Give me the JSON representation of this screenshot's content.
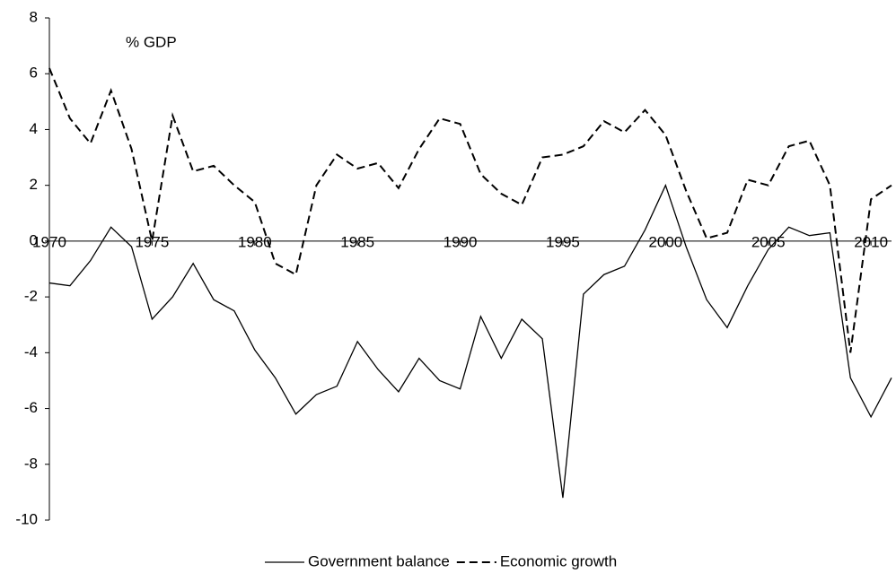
{
  "chart_data": {
    "type": "line",
    "annotation": "% GDP",
    "x": [
      1970,
      1971,
      1972,
      1973,
      1974,
      1975,
      1976,
      1977,
      1978,
      1979,
      1980,
      1981,
      1982,
      1983,
      1984,
      1985,
      1986,
      1987,
      1988,
      1989,
      1990,
      1991,
      1992,
      1993,
      1994,
      1995,
      1996,
      1997,
      1998,
      1999,
      2000,
      2001,
      2002,
      2003,
      2004,
      2005,
      2006,
      2007,
      2008,
      2009,
      2010,
      2011
    ],
    "series": [
      {
        "name": "Government balance",
        "color": "#000000",
        "style": "solid",
        "values": [
          -1.5,
          -1.6,
          -0.7,
          0.5,
          -0.2,
          -2.8,
          -2.0,
          -0.8,
          -2.1,
          -2.5,
          -3.9,
          -4.9,
          -6.2,
          -5.5,
          -5.2,
          -3.6,
          -4.6,
          -5.4,
          -4.2,
          -5.0,
          -5.3,
          -2.7,
          -4.2,
          -2.8,
          -3.5,
          -9.2,
          -1.9,
          -1.2,
          -0.9,
          0.4,
          2.0,
          -0.2,
          -2.1,
          -3.1,
          -1.6,
          -0.3,
          0.5,
          0.2,
          0.3,
          -4.9,
          -6.3,
          -4.9
        ]
      },
      {
        "name": "Economic growth",
        "color": "#000000",
        "style": "dashed",
        "values": [
          6.2,
          4.4,
          3.5,
          5.4,
          3.3,
          0.0,
          4.5,
          2.5,
          2.7,
          2.0,
          1.4,
          -0.8,
          -1.2,
          2.0,
          3.1,
          2.6,
          2.8,
          1.9,
          3.3,
          4.4,
          4.2,
          2.4,
          1.7,
          1.3,
          3.0,
          3.1,
          3.4,
          4.3,
          3.9,
          4.7,
          3.8,
          1.8,
          0.1,
          0.3,
          2.2,
          2.0,
          3.4,
          3.6,
          2.0,
          -4.0,
          1.5,
          2.0
        ]
      }
    ],
    "xlim": [
      1970,
      2011
    ],
    "xticks": [
      1970,
      1975,
      1980,
      1985,
      1990,
      1995,
      2000,
      2005,
      2010
    ],
    "ylim": [
      -10,
      8
    ],
    "yticks": [
      -10,
      -8,
      -6,
      -4,
      -2,
      0,
      2,
      4,
      6,
      8
    ],
    "grid": false,
    "legend": "bottom"
  }
}
